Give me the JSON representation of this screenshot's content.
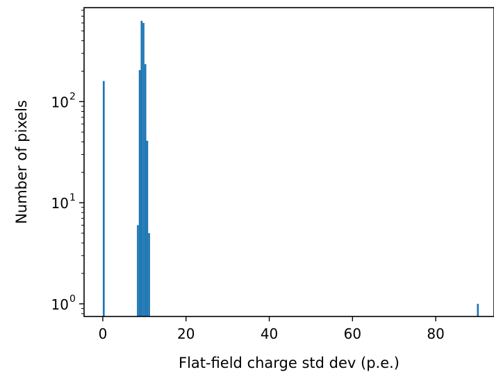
{
  "chart_data": {
    "type": "bar",
    "title": "",
    "xlabel": "Flat-field charge std dev (p.e.)",
    "ylabel": "Number of pixels",
    "xlim": [
      -4.5,
      94
    ],
    "ylim": [
      0.75,
      850
    ],
    "yscale": "log",
    "grid": false,
    "bar_color": "#1f77b4",
    "bin_width": 0.45,
    "x_ticks": [
      {
        "value": 0,
        "label": "0"
      },
      {
        "value": 20,
        "label": "20"
      },
      {
        "value": 40,
        "label": "40"
      },
      {
        "value": 60,
        "label": "60"
      },
      {
        "value": 80,
        "label": "80"
      }
    ],
    "y_ticks": [
      {
        "value": 1,
        "base": "10",
        "exponent": "0"
      },
      {
        "value": 10,
        "base": "10",
        "exponent": "1"
      },
      {
        "value": 100,
        "base": "10",
        "exponent": "2"
      }
    ],
    "bins": [
      {
        "x": 0.0,
        "count": 160
      },
      {
        "x": 8.2,
        "count": 6
      },
      {
        "x": 8.65,
        "count": 205
      },
      {
        "x": 9.1,
        "count": 630
      },
      {
        "x": 9.55,
        "count": 600
      },
      {
        "x": 10.0,
        "count": 235
      },
      {
        "x": 10.45,
        "count": 41
      },
      {
        "x": 10.9,
        "count": 5
      },
      {
        "x": 89.9,
        "count": 1
      }
    ]
  }
}
